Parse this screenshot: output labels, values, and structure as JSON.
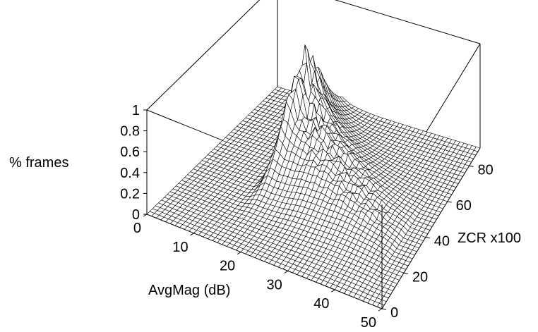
{
  "chart_data": {
    "type": "surface",
    "title": "",
    "zlabel": "% frames",
    "xlabel": "AvgMag (dB)",
    "ylabel": "ZCR x100",
    "xlim": [
      0,
      50
    ],
    "ylim": [
      0,
      90
    ],
    "zlim": [
      0,
      1
    ],
    "xticks": [
      "0",
      "10",
      "20",
      "30",
      "40",
      "50"
    ],
    "yticks": [
      "0",
      "20",
      "40",
      "60",
      "80"
    ],
    "zticks": [
      "0",
      "0.2",
      "0.4",
      "0.6",
      "0.8",
      "1"
    ],
    "grid": false,
    "box": true,
    "surface_peak": {
      "avgmag_db": 16,
      "zcr_x100": 60,
      "pct_frames": 0.9
    },
    "ridge": [
      {
        "avgmag_db": 16,
        "zcr_x100": 60,
        "pct_frames": 0.9
      },
      {
        "avgmag_db": 18,
        "zcr_x100": 58,
        "pct_frames": 0.6
      },
      {
        "avgmag_db": 21,
        "zcr_x100": 55,
        "pct_frames": 0.45
      },
      {
        "avgmag_db": 25,
        "zcr_x100": 50,
        "pct_frames": 0.35
      },
      {
        "avgmag_db": 30,
        "zcr_x100": 46,
        "pct_frames": 0.25
      },
      {
        "avgmag_db": 35,
        "zcr_x100": 42,
        "pct_frames": 0.18
      },
      {
        "avgmag_db": 40,
        "zcr_x100": 38,
        "pct_frames": 0.1
      },
      {
        "avgmag_db": 45,
        "zcr_x100": 35,
        "pct_frames": 0.03
      }
    ],
    "colors": {
      "surface": "#ffffff",
      "mesh": "#000000",
      "box": "#000000"
    }
  }
}
